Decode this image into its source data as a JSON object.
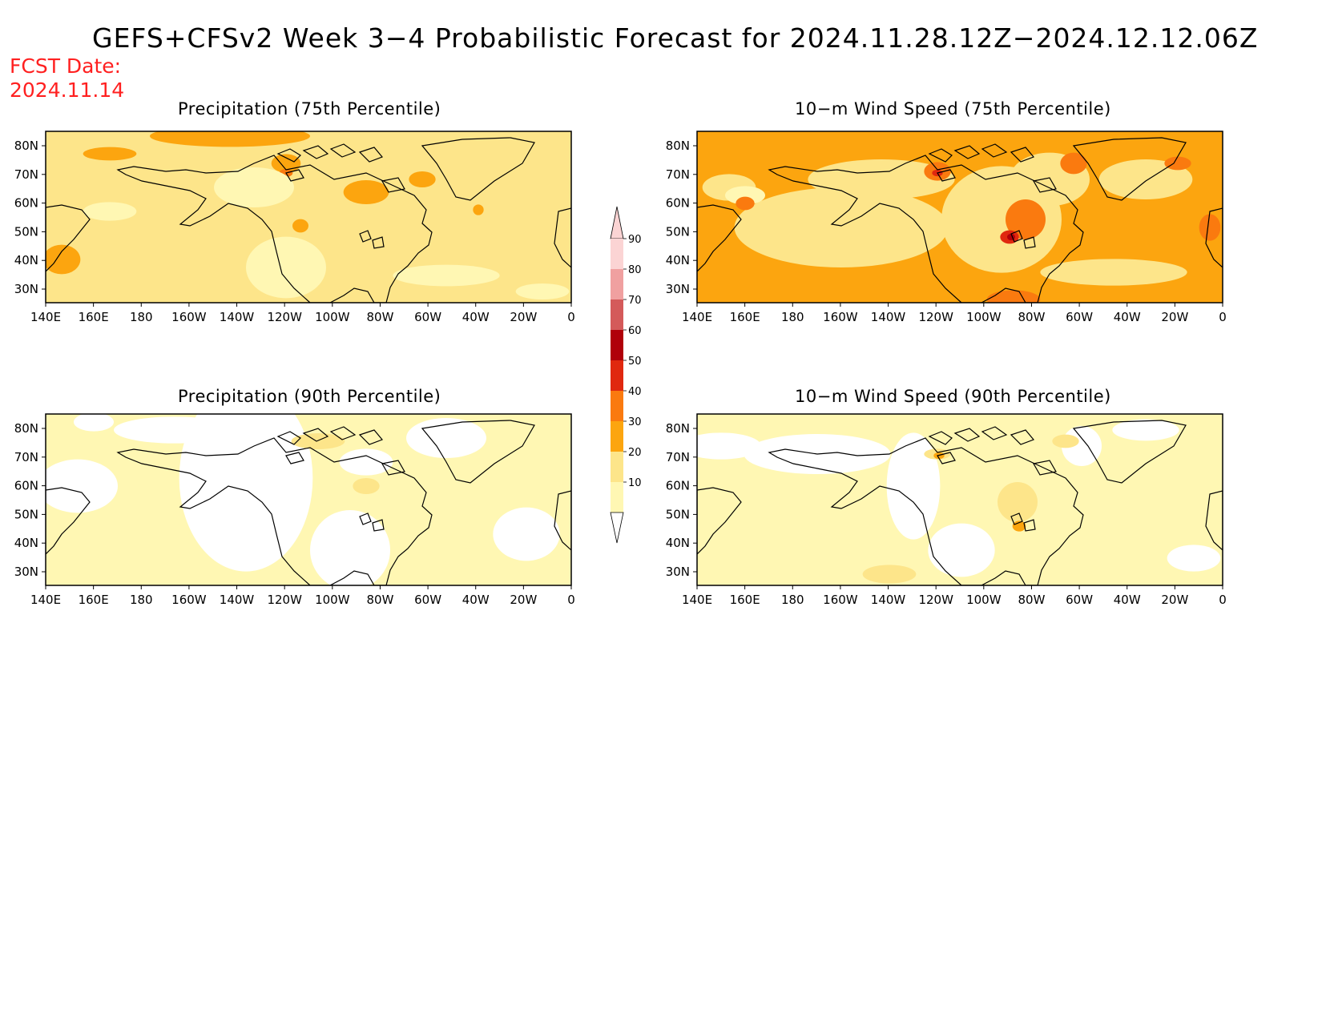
{
  "title": "GEFS+CFSv2 Week 3−4 Probabilistic Forecast for 2024.11.28.12Z−2024.12.12.06Z",
  "fcst_date": {
    "label": "FCST Date:",
    "value": "2024.11.14"
  },
  "colors": {
    "c10": "#fff7b3",
    "c20": "#fde58a",
    "c30": "#fca50f",
    "c40": "#fa7a0f",
    "c50": "#e0280f",
    "c60": "#b0000a",
    "c70": "#d45a5a",
    "c80": "#f0a0a0",
    "c90": "#fbd4d4",
    "outline": "#000000"
  },
  "axes": {
    "lat_labels": [
      "80N",
      "70N",
      "60N",
      "50N",
      "40N",
      "30N"
    ],
    "lon_labels": [
      "140E",
      "160E",
      "180",
      "160W",
      "140W",
      "120W",
      "100W",
      "80W",
      "60W",
      "40W",
      "20W",
      "0"
    ]
  },
  "colorbar": {
    "levels": [
      "90",
      "80",
      "70",
      "60",
      "50",
      "40",
      "30",
      "20",
      "10"
    ]
  },
  "panels": [
    {
      "id": "p1",
      "title": "Precipitation (75th Percentile)",
      "variant": "precip75"
    },
    {
      "id": "p2",
      "title": "10−m Wind Speed (75th Percentile)",
      "variant": "wind75"
    },
    {
      "id": "p3",
      "title": "Precipitation (90th Percentile)",
      "variant": "precip90"
    },
    {
      "id": "p4",
      "title": "10−m Wind Speed (90th Percentile)",
      "variant": "wind90"
    }
  ]
}
